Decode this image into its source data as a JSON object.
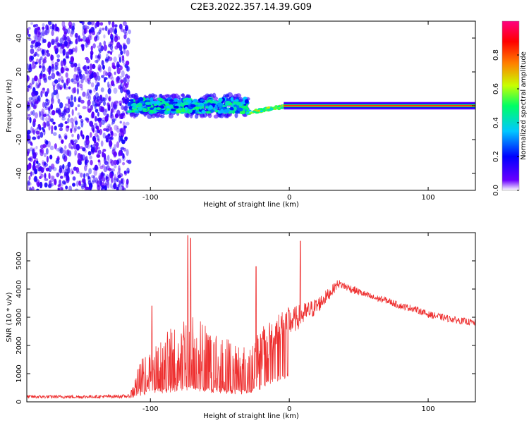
{
  "title": "C2E3.2022.357.14.39.G09",
  "chart_data": [
    {
      "type": "heatmap",
      "xlabel": "Height of straight line (km)",
      "ylabel": "Frequency (Hz)",
      "xlim": [
        -189,
        134
      ],
      "ylim": [
        -50,
        50
      ],
      "xticks": [
        -100,
        0,
        100
      ],
      "xtick_labels": [
        "-100",
        "0",
        "100"
      ],
      "yticks": [
        -40,
        -20,
        0,
        20,
        40
      ],
      "ytick_labels": [
        "-40",
        "-20",
        "0",
        "20",
        "40"
      ],
      "colorbar": {
        "label": "Normalized spectral amplitude",
        "range": [
          0,
          1
        ],
        "ticks": [
          0.0,
          0.2,
          0.4,
          0.6,
          0.8
        ],
        "tick_labels": [
          "0.0",
          "0.2",
          "0.4",
          "0.6",
          "0.8"
        ],
        "colors": [
          "#ffffff",
          "#6a00ff",
          "#0000ff",
          "#00c8ff",
          "#00ff64",
          "#c8ff00",
          "#ff8000",
          "#ff0000",
          "#ff0080"
        ]
      },
      "features": [
        {
          "region": "noise",
          "x_range": [
            -189,
            -115
          ],
          "y_range": [
            -50,
            50
          ],
          "amplitude": 0.05
        },
        {
          "region": "scattered-band",
          "x_range": [
            -115,
            -30
          ],
          "center_y": 0,
          "half_width": 4,
          "amplitude": 0.3
        },
        {
          "region": "transition",
          "x_range": [
            -30,
            0
          ],
          "y_start": -4,
          "y_end": 0,
          "amplitude": 0.5
        },
        {
          "region": "steady-line",
          "x_range": [
            0,
            134
          ],
          "center_y": 0,
          "amplitude": 0.9
        }
      ]
    },
    {
      "type": "line",
      "xlabel": "Height of straight line (km)",
      "ylabel": "SNR (10 * v/v)",
      "xlim": [
        -189,
        134
      ],
      "ylim": [
        0,
        6000
      ],
      "xticks": [
        -100,
        0,
        100
      ],
      "xtick_labels": [
        "-100",
        "0",
        "100"
      ],
      "yticks": [
        0,
        1000,
        2000,
        3000,
        4000,
        5000
      ],
      "ytick_labels": [
        "0",
        "1000",
        "2000",
        "3000",
        "4000",
        "5000"
      ],
      "color": "#ee3030",
      "envelope": {
        "x": [
          -189,
          -150,
          -115,
          -108,
          -100,
          -90,
          -80,
          -70,
          -60,
          -50,
          -40,
          -30,
          -20,
          -10,
          0,
          10,
          20,
          30,
          35,
          40,
          50,
          60,
          70,
          80,
          90,
          100,
          110,
          120,
          134
        ],
        "base": [
          180,
          180,
          200,
          700,
          900,
          1000,
          1200,
          1300,
          1100,
          1000,
          900,
          800,
          1500,
          2300,
          2800,
          3100,
          3400,
          3900,
          4200,
          4100,
          3900,
          3700,
          3600,
          3400,
          3300,
          3100,
          3000,
          2900,
          2800
        ],
        "noise": [
          60,
          60,
          60,
          700,
          800,
          1200,
          1800,
          1700,
          1500,
          1300,
          1200,
          1100,
          1000,
          700,
          500,
          400,
          300,
          200,
          150,
          150,
          130,
          120,
          120,
          120,
          120,
          120,
          120,
          120,
          120
        ]
      },
      "spikes": [
        {
          "x": -99,
          "y": 3400
        },
        {
          "x": -73,
          "y": 5900
        },
        {
          "x": -71,
          "y": 5800
        },
        {
          "x": -24,
          "y": 4800
        },
        {
          "x": 8,
          "y": 5700
        }
      ]
    }
  ]
}
